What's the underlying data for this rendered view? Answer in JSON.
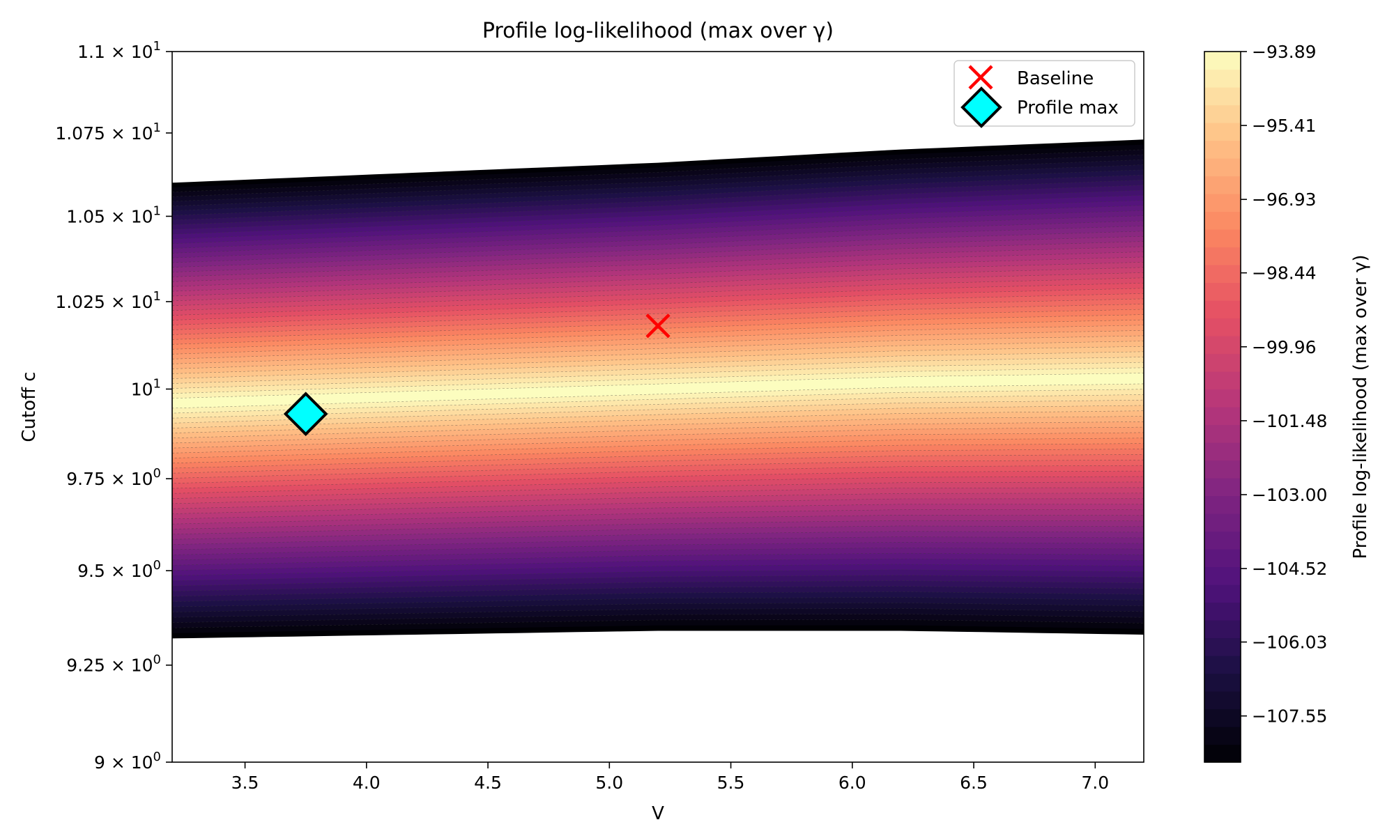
{
  "chart_data": {
    "type": "heatmap",
    "title": "Profile log-likelihood (max over γ)",
    "xlabel": "V",
    "ylabel": "Cutoff c",
    "xlim": [
      3.2,
      7.2
    ],
    "ylim": [
      9.0,
      11.0
    ],
    "y_scale": "log",
    "x_ticks": [
      3.5,
      4.0,
      4.5,
      5.0,
      5.5,
      6.0,
      6.5,
      7.0
    ],
    "x_tick_labels": [
      "3.5",
      "4.0",
      "4.5",
      "5.0",
      "5.5",
      "6.0",
      "6.5",
      "7.0"
    ],
    "y_ticks": [
      9.0,
      9.25,
      9.5,
      9.75,
      10.0,
      10.25,
      10.5,
      10.75,
      11.0
    ],
    "y_tick_labels": [
      {
        "base": "9 × 10",
        "exp": "0"
      },
      {
        "base": "9.25 × 10",
        "exp": "0"
      },
      {
        "base": "9.5 × 10",
        "exp": "0"
      },
      {
        "base": "9.75 × 10",
        "exp": "0"
      },
      {
        "base": "10",
        "exp": "1"
      },
      {
        "base": "1.025 × 10",
        "exp": "1"
      },
      {
        "base": "1.05 × 10",
        "exp": "1"
      },
      {
        "base": "1.075 × 10",
        "exp": "1"
      },
      {
        "base": "1.1 × 10",
        "exp": "1"
      }
    ],
    "colormap": "magma",
    "colorbar": {
      "label": "Profile log-likelihood (max over γ)",
      "range": [
        -108.5,
        -93.89
      ],
      "ticks": [
        -93.89,
        -95.41,
        -96.93,
        -98.44,
        -99.96,
        -101.48,
        -103.0,
        -104.52,
        -106.03,
        -107.55
      ],
      "tick_labels": [
        "−93.89",
        "−95.41",
        "−96.93",
        "−98.44",
        "−99.96",
        "−101.48",
        "−103.00",
        "−104.52",
        "−106.03",
        "−107.55"
      ]
    },
    "surface_profile": [
      {
        "v": 3.2,
        "c_peak": 9.96,
        "c_half_width": 0.64
      },
      {
        "v": 4.2,
        "c_peak": 9.98,
        "c_half_width": 0.65
      },
      {
        "v": 5.2,
        "c_peak": 10.0,
        "c_half_width": 0.66
      },
      {
        "v": 6.2,
        "c_peak": 10.02,
        "c_half_width": 0.68
      },
      {
        "v": 7.2,
        "c_peak": 10.03,
        "c_half_width": 0.7
      }
    ],
    "points": [
      {
        "name": "Baseline",
        "v": 5.2,
        "c": 10.18,
        "marker": "x",
        "color": "#ff0000"
      },
      {
        "name": "Profile max",
        "v": 3.75,
        "c": 9.93,
        "marker": "diamond",
        "color": "#00ffff"
      }
    ],
    "legend": {
      "placement": "top-right",
      "entries": [
        "Baseline",
        "Profile max"
      ]
    }
  }
}
